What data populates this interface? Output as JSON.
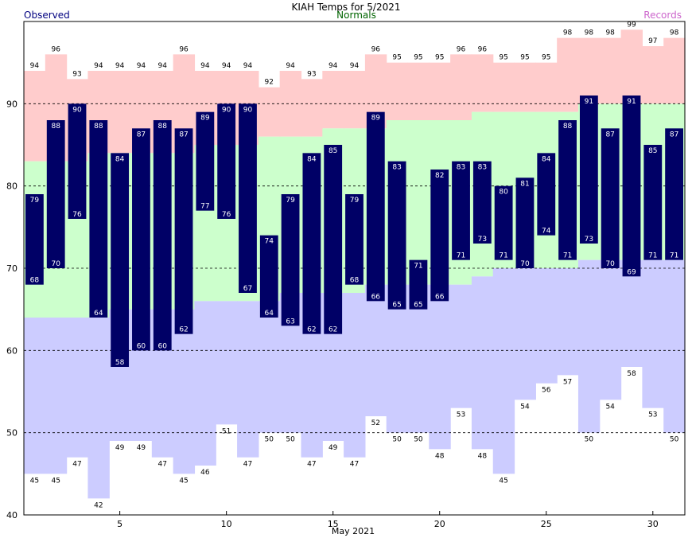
{
  "chart_data": {
    "type": "bar",
    "title": "KIAH Temps for 5/2021",
    "xlabel": "May 2021",
    "ylabel": "",
    "legend": [
      {
        "label": "Observed",
        "color": "#000080",
        "position": "top-left"
      },
      {
        "label": "Normals",
        "color": "#006400",
        "position": "top-center"
      },
      {
        "label": "Records",
        "color": "#cc66cc",
        "position": "top-right"
      }
    ],
    "ylim": [
      40,
      100
    ],
    "yticks": [
      40,
      50,
      60,
      70,
      80,
      90
    ],
    "xticks": [
      5,
      10,
      15,
      20,
      25,
      30
    ],
    "grid_lines_y": [
      50,
      60,
      70,
      80,
      90
    ],
    "days": [
      1,
      2,
      3,
      4,
      5,
      6,
      7,
      8,
      9,
      10,
      11,
      12,
      13,
      14,
      15,
      16,
      17,
      18,
      19,
      20,
      21,
      22,
      23,
      24,
      25,
      26,
      27,
      28,
      29,
      30,
      31
    ],
    "record_high": [
      94,
      96,
      93,
      94,
      94,
      94,
      94,
      96,
      94,
      94,
      94,
      92,
      94,
      93,
      94,
      94,
      96,
      95,
      95,
      95,
      96,
      96,
      95,
      95,
      95,
      98,
      98,
      98,
      99,
      97,
      98
    ],
    "normal_high": [
      83,
      83,
      83,
      84,
      84,
      84,
      84,
      84,
      85,
      85,
      85,
      86,
      86,
      86,
      87,
      87,
      87,
      88,
      88,
      88,
      88,
      89,
      89,
      89,
      89,
      89,
      90,
      90,
      90,
      90,
      90
    ],
    "normal_low": [
      64,
      64,
      64,
      64,
      65,
      65,
      65,
      65,
      66,
      66,
      66,
      66,
      67,
      67,
      67,
      67,
      68,
      68,
      68,
      68,
      68,
      69,
      70,
      70,
      70,
      70,
      71,
      71,
      71,
      71,
      71
    ],
    "record_low": [
      45,
      45,
      47,
      42,
      49,
      49,
      47,
      45,
      46,
      51,
      47,
      50,
      50,
      47,
      49,
      47,
      52,
      50,
      50,
      48,
      53,
      48,
      45,
      54,
      56,
      57,
      50,
      54,
      58,
      53,
      50
    ],
    "observed_high": [
      79,
      88,
      90,
      88,
      84,
      87,
      88,
      87,
      89,
      90,
      90,
      74,
      79,
      84,
      85,
      79,
      89,
      83,
      71,
      82,
      83,
      83,
      80,
      81,
      84,
      88,
      91,
      87,
      91,
      85,
      87
    ],
    "observed_low": [
      68,
      70,
      76,
      64,
      58,
      60,
      60,
      62,
      77,
      76,
      67,
      64,
      63,
      62,
      62,
      68,
      66,
      65,
      65,
      66,
      71,
      73,
      71,
      70,
      74,
      71,
      73,
      70,
      69,
      71,
      71
    ],
    "colors": {
      "record_band": "#ffcccc",
      "normal_band": "#ccffcc",
      "low_band": "#ccccff",
      "observed_bar": "#000066",
      "grid": "#000000"
    }
  }
}
